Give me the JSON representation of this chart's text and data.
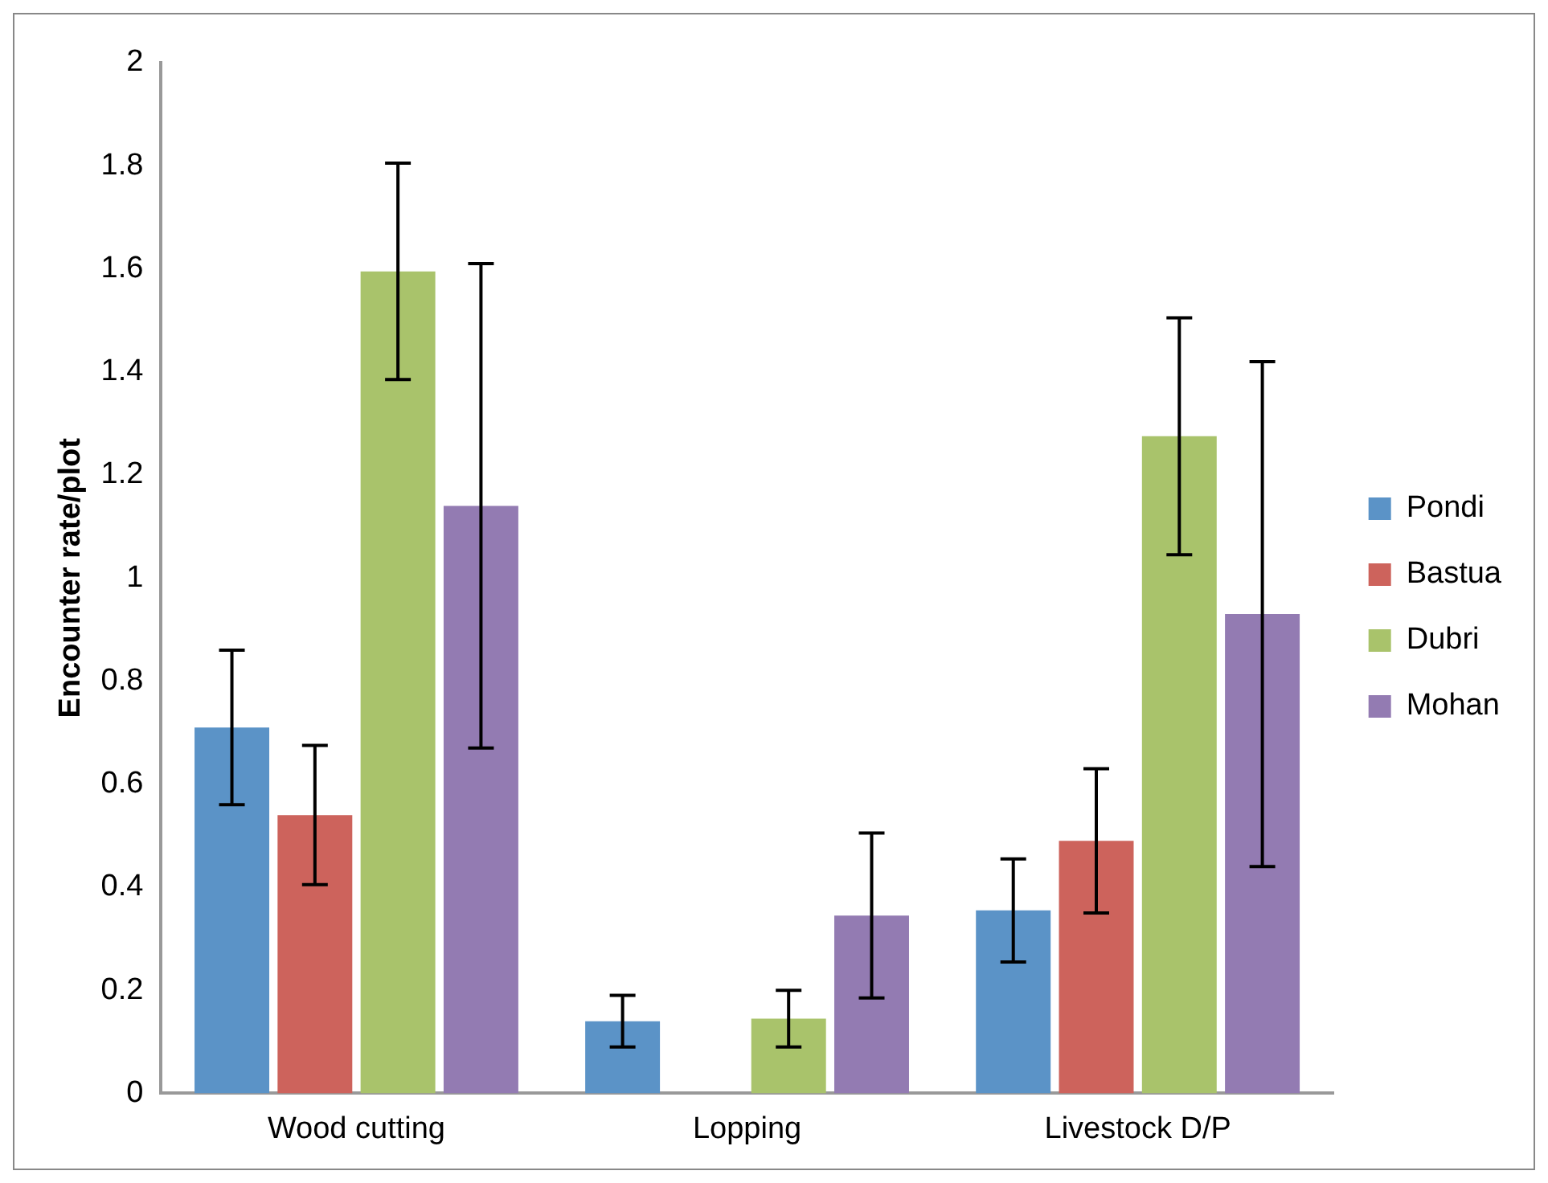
{
  "chart_data": {
    "type": "bar",
    "ylabel": "Encounter rate/plot",
    "categories": [
      "Wood cutting",
      "Lopping",
      "Livestock D/P"
    ],
    "series": [
      {
        "name": "Pondi",
        "color": "#5b93c7",
        "values": [
          0.71,
          0.14,
          0.355
        ],
        "errors": [
          0.15,
          0.05,
          0.1
        ]
      },
      {
        "name": "Bastua",
        "color": "#cd635c",
        "values": [
          0.54,
          0,
          0.49
        ],
        "errors": [
          0.135,
          null,
          0.14
        ]
      },
      {
        "name": "Dubri",
        "color": "#a9c36b",
        "values": [
          1.595,
          0.145,
          1.275
        ],
        "errors": [
          0.21,
          0.055,
          0.23
        ]
      },
      {
        "name": "Mohan",
        "color": "#937bb2",
        "values": [
          1.14,
          0.345,
          0.93
        ],
        "errors": [
          0.47,
          0.16,
          0.49
        ]
      }
    ],
    "ylim": [
      0,
      2
    ],
    "yticks": [
      0,
      0.2,
      0.4,
      0.6,
      0.8,
      1,
      1.2,
      1.4,
      1.6,
      1.8,
      2
    ],
    "grid": false,
    "legend": "right"
  }
}
